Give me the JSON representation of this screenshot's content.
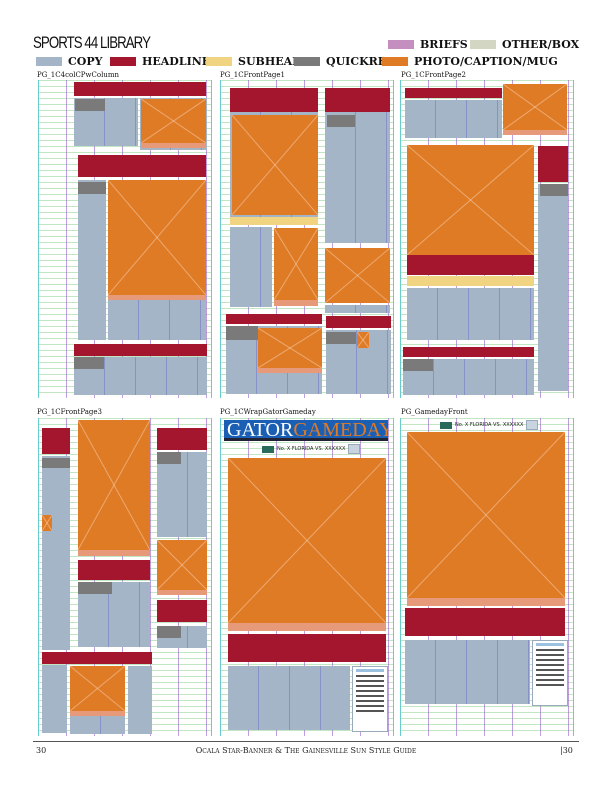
{
  "header": {
    "title": "SPORTS 44 LIBRARY"
  },
  "legend": [
    {
      "label": "BRIEFS",
      "color": "#c48fc0"
    },
    {
      "label": "OTHER/BOX",
      "color": "#d4d6c4"
    },
    {
      "label": "COPY",
      "color": "#a3b5c6"
    },
    {
      "label": "HEADLINE",
      "color": "#a3162e"
    },
    {
      "label": "SUBHEAD",
      "color": "#f0d482"
    },
    {
      "label": "QUICKREAD",
      "color": "#7a7a7a"
    },
    {
      "label": "PHOTO/CAPTION/MUG",
      "color": "#e07b25"
    }
  ],
  "templates": [
    {
      "label": "PG_1C4colCPwColumn"
    },
    {
      "label": "PG_1CFrontPage1"
    },
    {
      "label": "PG_1CFrontPage2"
    },
    {
      "label": "PG_1CFrontPage3"
    },
    {
      "label": "PG_1CWrapGatorGameday",
      "banner_part1": "GATOR",
      "banner_part2": "GAMEDAY",
      "teaser": "No. X FLORIDA VS. XXXXXX"
    },
    {
      "label": "PG_GamedayFront",
      "teaser": "No. X FLORIDA VS. XXXXXX"
    }
  ],
  "footer": {
    "page_left": "30",
    "center": "Ocala Star-Banner & The Gainesville Sun Style Guide",
    "page_right": "|30"
  }
}
